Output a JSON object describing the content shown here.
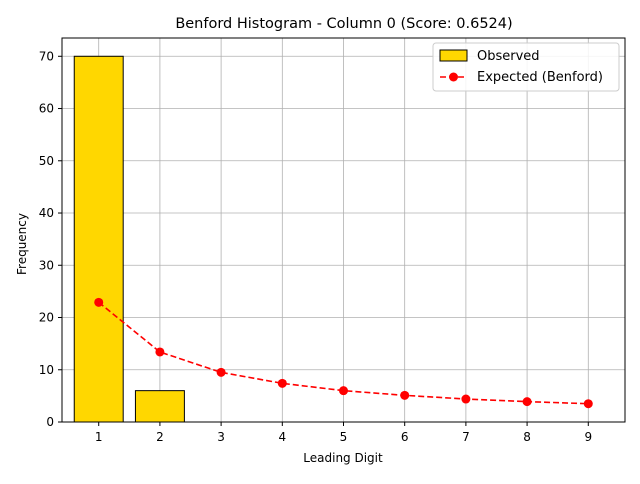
{
  "chart_data": {
    "type": "bar",
    "title": "Benford Histogram - Column 0 (Score: 0.6524)",
    "xlabel": "Leading Digit",
    "ylabel": "Frequency",
    "categories": [
      "1",
      "2",
      "3",
      "4",
      "5",
      "6",
      "7",
      "8",
      "9"
    ],
    "ylim": [
      0,
      73.5
    ],
    "yticks": [
      0,
      10,
      20,
      30,
      40,
      50,
      60,
      70
    ],
    "grid": true,
    "legend_position": "top-right",
    "series": [
      {
        "name": "Observed",
        "type": "bar",
        "values": [
          70,
          6,
          0,
          0,
          0,
          0,
          0,
          0,
          0
        ],
        "color": "#FFD700",
        "edge_color": "#000000"
      },
      {
        "name": "Expected (Benford)",
        "type": "line",
        "style": "dashed",
        "marker": "circle",
        "values": [
          22.9,
          13.4,
          9.5,
          7.4,
          6.0,
          5.1,
          4.4,
          3.9,
          3.5
        ],
        "color": "#FF0000"
      }
    ]
  }
}
